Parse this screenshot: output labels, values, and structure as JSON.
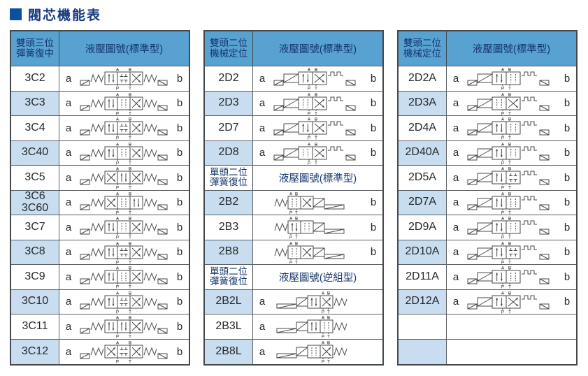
{
  "title": "閥芯機能表",
  "colors": {
    "header_bg": "#57a2d1",
    "row_alt_bg": "#c8def0",
    "header_text": "#16366e",
    "title_text": "#173a7e",
    "title_bullet": "#0b4fa0",
    "border": "#44494e",
    "symbol_stroke": "#4a4a4a"
  },
  "port_labels": {
    "a": "A",
    "b": "B",
    "p": "P",
    "t": "T"
  },
  "tables": [
    {
      "name": "double-head-3pos",
      "items": [
        {
          "t": "main",
          "l": "雙頭三位\n彈簧復中",
          "r": "液壓圖號(標準型)"
        },
        {
          "t": "row",
          "code": "3C2",
          "a": "a",
          "b": "b",
          "shaded": false,
          "sym": {
            "kind": "d3",
            "g": [
              "par",
              "closed",
              "cross"
            ]
          }
        },
        {
          "t": "row",
          "code": "3C3",
          "a": "a",
          "b": "b",
          "shaded": true,
          "sym": {
            "kind": "d3",
            "g": [
              "par",
              "dash",
              "cross"
            ]
          }
        },
        {
          "t": "row",
          "code": "3C4",
          "a": "a",
          "b": "b",
          "shaded": false,
          "sym": {
            "kind": "d3",
            "g": [
              "par",
              "closed",
              "cross"
            ]
          }
        },
        {
          "t": "row",
          "code": "3C40",
          "a": "a",
          "b": "b",
          "shaded": true,
          "sym": {
            "kind": "d3",
            "g": [
              "par",
              "dash",
              "cross"
            ]
          }
        },
        {
          "t": "row",
          "code": "3C5",
          "a": "a",
          "b": "b",
          "shaded": false,
          "sym": {
            "kind": "d3",
            "g": [
              "cross",
              "par",
              "cross"
            ]
          }
        },
        {
          "t": "row",
          "code": "3C6\n3C60",
          "a": "a",
          "b": "b",
          "shaded": true,
          "sym": {
            "kind": "d3",
            "g": [
              "cross",
              "dash",
              "par"
            ]
          }
        },
        {
          "t": "row",
          "code": "3C7",
          "a": "a",
          "b": "b",
          "shaded": false,
          "sym": {
            "kind": "d3",
            "g": [
              "par",
              "dash",
              "cross"
            ]
          }
        },
        {
          "t": "row",
          "code": "3C8",
          "a": "a",
          "b": "b",
          "shaded": true,
          "sym": {
            "kind": "d3",
            "g": [
              "par",
              "closed",
              "cross"
            ]
          }
        },
        {
          "t": "row",
          "code": "3C9",
          "a": "a",
          "b": "b",
          "shaded": false,
          "sym": {
            "kind": "d3",
            "g": [
              "par",
              "dash",
              "cross"
            ]
          }
        },
        {
          "t": "row",
          "code": "3C10",
          "a": "a",
          "b": "b",
          "shaded": true,
          "sym": {
            "kind": "d3",
            "g": [
              "par",
              "closed",
              "cross"
            ]
          }
        },
        {
          "t": "row",
          "code": "3C11",
          "a": "a",
          "b": "b",
          "shaded": false,
          "sym": {
            "kind": "d3",
            "g": [
              "par",
              "par",
              "cross"
            ]
          }
        },
        {
          "t": "row",
          "code": "3C12",
          "a": "a",
          "b": "b",
          "shaded": true,
          "sym": {
            "kind": "d3",
            "g": [
              "cross",
              "closed",
              "cross"
            ]
          }
        }
      ]
    },
    {
      "name": "double-head-2pos-and-single-head",
      "items": [
        {
          "t": "main",
          "l": "雙頭二位\n機械定位",
          "r": "液壓圖號(標準型)"
        },
        {
          "t": "row",
          "code": "2D2",
          "a": "a",
          "b": "b",
          "shaded": false,
          "sym": {
            "kind": "d2",
            "g": [
              "par",
              "cross"
            ]
          }
        },
        {
          "t": "row",
          "code": "2D3",
          "a": "a",
          "b": "b",
          "shaded": true,
          "sym": {
            "kind": "d2",
            "g": [
              "dash",
              "cross"
            ]
          }
        },
        {
          "t": "row",
          "code": "2D7",
          "a": "a",
          "b": "b",
          "shaded": false,
          "sym": {
            "kind": "d2",
            "g": [
              "par",
              "cross"
            ]
          }
        },
        {
          "t": "row",
          "code": "2D8",
          "a": "a",
          "b": "b",
          "shaded": true,
          "sym": {
            "kind": "d2",
            "g": [
              "dash",
              "cross"
            ]
          }
        },
        {
          "t": "sub",
          "l": "單頭二位\n彈簧復位",
          "r": "液壓圖號(標準型)"
        },
        {
          "t": "row",
          "code": "2B2",
          "a": "",
          "b": "b",
          "shaded": true,
          "sym": {
            "kind": "bR",
            "g": [
              "dash",
              "cross"
            ]
          }
        },
        {
          "t": "row",
          "code": "2B3",
          "a": "",
          "b": "b",
          "shaded": false,
          "sym": {
            "kind": "bR",
            "g": [
              "par",
              "dash"
            ]
          }
        },
        {
          "t": "row",
          "code": "2B8",
          "a": "",
          "b": "b",
          "shaded": true,
          "sym": {
            "kind": "bR",
            "g": [
              "dash",
              "cross"
            ]
          }
        },
        {
          "t": "sub",
          "l": "單頭二位\n彈簧復位",
          "r": "液壓圖號(逆組型)"
        },
        {
          "t": "row",
          "code": "2B2L",
          "a": "a",
          "b": "",
          "shaded": true,
          "sym": {
            "kind": "bL",
            "g": [
              "par",
              "cross"
            ]
          }
        },
        {
          "t": "row",
          "code": "2B3L",
          "a": "a",
          "b": "",
          "shaded": false,
          "sym": {
            "kind": "bL",
            "g": [
              "par",
              "dash"
            ]
          }
        },
        {
          "t": "row",
          "code": "2B8L",
          "a": "a",
          "b": "",
          "shaded": true,
          "sym": {
            "kind": "bL",
            "g": [
              "dash",
              "cross"
            ]
          }
        }
      ]
    },
    {
      "name": "double-head-2pos-A",
      "items": [
        {
          "t": "main",
          "l": "雙頭二位\n機械定位",
          "r": "液壓圖號(標準型)"
        },
        {
          "t": "row",
          "code": "2D2A",
          "a": "a",
          "b": "b",
          "shaded": false,
          "sym": {
            "kind": "d2",
            "g": [
              "par",
              "dash"
            ]
          }
        },
        {
          "t": "row",
          "code": "2D3A",
          "a": "a",
          "b": "b",
          "shaded": true,
          "sym": {
            "kind": "d2",
            "g": [
              "dash",
              "cross"
            ]
          }
        },
        {
          "t": "row",
          "code": "2D4A",
          "a": "a",
          "b": "b",
          "shaded": false,
          "sym": {
            "kind": "d2",
            "g": [
              "par",
              "dash"
            ]
          }
        },
        {
          "t": "row",
          "code": "2D40A",
          "a": "a",
          "b": "b",
          "shaded": true,
          "sym": {
            "kind": "d2",
            "g": [
              "par",
              "dash"
            ]
          }
        },
        {
          "t": "row",
          "code": "2D5A",
          "a": "a",
          "b": "b",
          "shaded": false,
          "sym": {
            "kind": "d2",
            "g": [
              "par",
              "closed"
            ]
          }
        },
        {
          "t": "row",
          "code": "2D7A",
          "a": "a",
          "b": "b",
          "shaded": true,
          "sym": {
            "kind": "d2",
            "g": [
              "par",
              "dash"
            ]
          }
        },
        {
          "t": "row",
          "code": "2D9A",
          "a": "a",
          "b": "b",
          "shaded": false,
          "sym": {
            "kind": "d2",
            "g": [
              "par",
              "dash"
            ]
          }
        },
        {
          "t": "row",
          "code": "2D10A",
          "a": "a",
          "b": "b",
          "shaded": true,
          "sym": {
            "kind": "d2",
            "g": [
              "par",
              "closed"
            ]
          }
        },
        {
          "t": "row",
          "code": "2D11A",
          "a": "a",
          "b": "b",
          "shaded": false,
          "sym": {
            "kind": "d2",
            "g": [
              "par",
              "dash"
            ]
          }
        },
        {
          "t": "row",
          "code": "2D12A",
          "a": "a",
          "b": "b",
          "shaded": true,
          "sym": {
            "kind": "d2",
            "g": [
              "par",
              "cross"
            ]
          }
        },
        {
          "t": "empty",
          "shaded": false
        },
        {
          "t": "empty",
          "shaded": true
        }
      ]
    }
  ]
}
